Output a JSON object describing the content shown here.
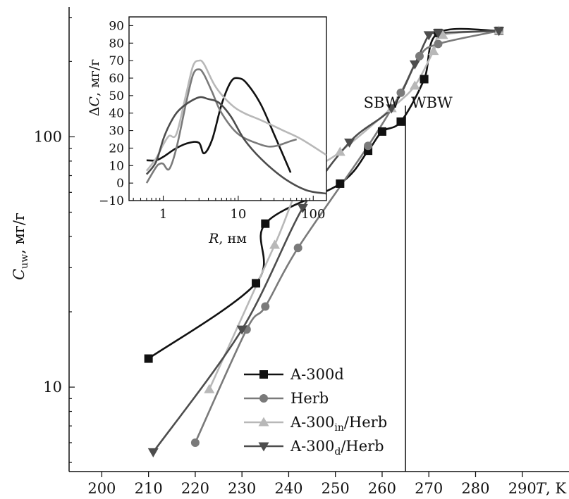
{
  "chart_data": [
    {
      "type": "line",
      "title": "",
      "xlabel": "T, K",
      "ylabel": "C_uw, мг/г",
      "xlim": [
        193,
        300
      ],
      "ylim": [
        4.6,
        330
      ],
      "yscale": "log",
      "x_ticks": [
        200,
        210,
        220,
        230,
        240,
        250,
        260,
        270,
        280,
        290
      ],
      "x_tick_labels": [
        "200",
        "210",
        "220",
        "230",
        "240",
        "250",
        "260",
        "270",
        "280",
        "290"
      ],
      "y_ticks": [
        10,
        100
      ],
      "y_tick_labels": [
        "10",
        "100"
      ],
      "grid": false,
      "legend_position": "bottom-center",
      "annotations": {
        "boundary_x": 265,
        "left_label": "SBW",
        "right_label": "WBW"
      },
      "series": [
        {
          "name": "A-300d",
          "legend_main": "A-300d",
          "legend_sub": "",
          "legend_tail": "",
          "marker": "square",
          "color": "#111111",
          "x": [
            210,
            233,
            235,
            251,
            257,
            260,
            264,
            269,
            272,
            285
          ],
          "y": [
            13,
            26,
            45,
            65,
            88,
            105,
            115,
            170,
            260,
            265
          ]
        },
        {
          "name": "Herb",
          "legend_main": "Herb",
          "legend_sub": "",
          "legend_tail": "",
          "marker": "circle",
          "color": "#7a7a7a",
          "x": [
            220,
            231,
            235,
            242,
            257,
            264,
            268,
            272,
            285
          ],
          "y": [
            6,
            17,
            21,
            36,
            92,
            150,
            210,
            235,
            265
          ]
        },
        {
          "name": "A-300in/Herb",
          "legend_main": "A-300",
          "legend_sub": "in",
          "legend_tail": "/Herb",
          "marker": "triangle-up",
          "color": "#b8b8b8",
          "x": [
            223,
            237,
            243,
            251,
            262,
            267,
            271,
            273,
            285
          ],
          "y": [
            9.8,
            37,
            67,
            87,
            130,
            160,
            220,
            255,
            265
          ]
        },
        {
          "name": "A-300d/Herb",
          "legend_main": "A-300",
          "legend_sub": "d",
          "legend_tail": "/Herb",
          "marker": "triangle-down",
          "color": "#4d4d4d",
          "x": [
            211,
            230,
            243,
            253,
            262,
            267,
            270,
            272,
            285
          ],
          "y": [
            5.5,
            17,
            52,
            95,
            130,
            195,
            255,
            260,
            265
          ]
        }
      ]
    },
    {
      "type": "line",
      "title": "",
      "xlabel": "R, нм",
      "ylabel": "ΔC, мг/г",
      "xlim": [
        0.35,
        150
      ],
      "ylim": [
        -10,
        95
      ],
      "xscale": "log",
      "x_ticks": [
        1,
        10,
        100
      ],
      "x_tick_labels": [
        "1",
        "10",
        "100"
      ],
      "y_ticks": [
        -10,
        0,
        10,
        20,
        30,
        40,
        50,
        60,
        70,
        80,
        90
      ],
      "y_tick_labels": [
        "−10",
        "0",
        "10",
        "20",
        "30",
        "40",
        "50",
        "60",
        "70",
        "80",
        "90"
      ],
      "series": [
        {
          "color": "#111111",
          "x": [
            0.6,
            0.8,
            1.0,
            1.5,
            2.2,
            3.0,
            3.5,
            4.5,
            6.0,
            8.0,
            10.0,
            13.0,
            20.0,
            30.0,
            50.0
          ],
          "y": [
            13,
            13,
            15,
            20,
            23,
            23,
            17,
            25,
            45,
            58,
            60,
            57,
            45,
            28,
            6
          ]
        },
        {
          "color": "#7a7a7a",
          "x": [
            0.6,
            0.8,
            0.9,
            1.0,
            1.2,
            1.5,
            2.0,
            2.5,
            3.0,
            3.5,
            4.5,
            6.0,
            10.0,
            20.0,
            30.0,
            50.0,
            60.0
          ],
          "y": [
            0,
            9,
            11,
            11,
            8,
            20,
            45,
            62,
            65,
            62,
            52,
            40,
            28,
            22,
            21,
            24,
            25
          ]
        },
        {
          "color": "#b8b8b8",
          "x": [
            0.6,
            0.8,
            1.0,
            1.2,
            1.5,
            2.0,
            2.5,
            3.0,
            3.5,
            5.0,
            8.0,
            12.0,
            20.0,
            40.0,
            70.0,
            150.0
          ],
          "y": [
            7,
            14,
            22,
            27,
            28,
            50,
            67,
            70,
            68,
            55,
            45,
            40,
            36,
            30,
            25,
            16
          ]
        },
        {
          "color": "#4d4d4d",
          "x": [
            0.6,
            0.8,
            1.0,
            1.2,
            1.5,
            2.0,
            3.0,
            4.0,
            5.5,
            8.0,
            12.0,
            20.0,
            40.0,
            80.0,
            150.0
          ],
          "y": [
            5,
            12,
            25,
            33,
            40,
            45,
            49,
            48,
            46,
            38,
            25,
            14,
            3,
            -4,
            -6
          ]
        }
      ]
    }
  ]
}
